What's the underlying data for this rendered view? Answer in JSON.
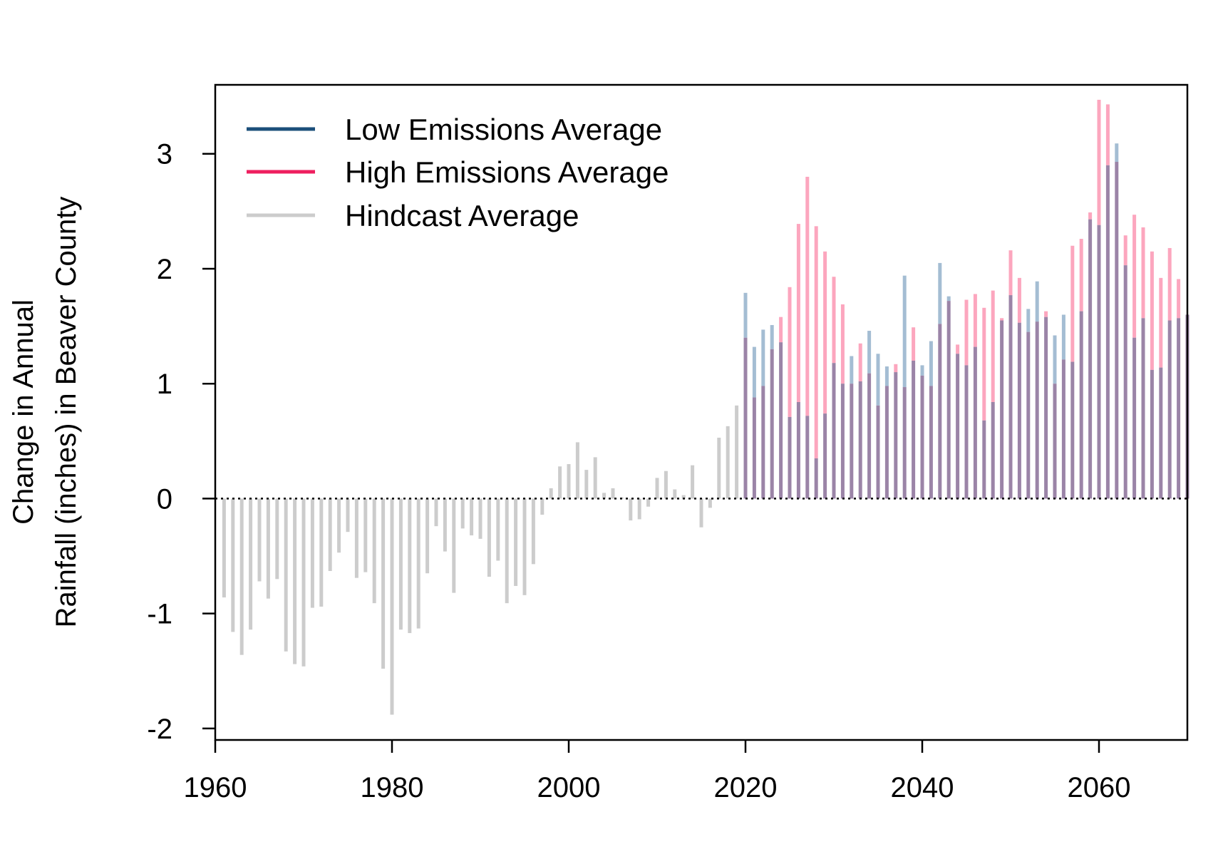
{
  "chart_data": {
    "type": "bar",
    "title": "",
    "xlabel": "",
    "ylabel_lines": [
      "Change in Annual",
      "Rainfall (inches) in Beaver County"
    ],
    "xlim": [
      1960,
      2070
    ],
    "ylim": [
      -2.1,
      3.6
    ],
    "xticks": [
      1960,
      1980,
      2000,
      2020,
      2040,
      2060
    ],
    "xtick_labels": [
      "1960",
      "1980",
      "2000",
      "2020",
      "2040",
      "2060"
    ],
    "yticks": [
      -2,
      -1,
      0,
      1,
      2,
      3
    ],
    "ytick_labels": [
      "-2",
      "-1",
      "0",
      "1",
      "2",
      "3"
    ],
    "grid": false,
    "zero_line": "dotted",
    "legend": {
      "position": "top-left",
      "entries": [
        {
          "label": "Low Emissions Average",
          "color": "#1b4f7a"
        },
        {
          "label": "High Emissions Average",
          "color": "#ee1f5f"
        },
        {
          "label": "Hindcast Average",
          "color": "#cccccc"
        }
      ]
    },
    "colors": {
      "hindcast": "#cccccc",
      "low_bar": "#a4bdd3",
      "high_bar": "#fca6be",
      "overlap": "#9b84a7"
    },
    "series": [
      {
        "name": "Hindcast Average",
        "x": [
          1961,
          1962,
          1963,
          1964,
          1965,
          1966,
          1967,
          1968,
          1969,
          1970,
          1971,
          1972,
          1973,
          1974,
          1975,
          1976,
          1977,
          1978,
          1979,
          1980,
          1981,
          1982,
          1983,
          1984,
          1985,
          1986,
          1987,
          1988,
          1989,
          1990,
          1991,
          1992,
          1993,
          1994,
          1995,
          1996,
          1997,
          1998,
          1999,
          2000,
          2001,
          2002,
          2003,
          2004,
          2005,
          2006,
          2007,
          2008,
          2009,
          2010,
          2011,
          2012,
          2013,
          2014,
          2015,
          2016,
          2017,
          2018,
          2019
        ],
        "values": [
          -0.86,
          -1.16,
          -1.36,
          -1.14,
          -0.72,
          -0.87,
          -0.7,
          -1.33,
          -1.44,
          -1.46,
          -0.95,
          -0.94,
          -0.63,
          -0.47,
          -0.29,
          -0.69,
          -0.64,
          -0.91,
          -1.48,
          -1.88,
          -1.14,
          -1.17,
          -1.13,
          -0.65,
          -0.24,
          -0.46,
          -0.82,
          -0.26,
          -0.32,
          -0.35,
          -0.68,
          -0.54,
          -0.91,
          -0.76,
          -0.84,
          -0.57,
          -0.14,
          0.09,
          0.28,
          0.3,
          0.49,
          0.25,
          0.36,
          0.05,
          0.09,
          0.01,
          -0.19,
          -0.18,
          -0.07,
          0.18,
          0.24,
          0.08,
          0.03,
          0.29,
          -0.25,
          -0.08,
          0.53,
          0.63,
          0.81
        ]
      },
      {
        "name": "Low Emissions Average",
        "x": [
          2020,
          2021,
          2022,
          2023,
          2024,
          2025,
          2026,
          2027,
          2028,
          2029,
          2030,
          2031,
          2032,
          2033,
          2034,
          2035,
          2036,
          2037,
          2038,
          2039,
          2040,
          2041,
          2042,
          2043,
          2044,
          2045,
          2046,
          2047,
          2048,
          2049,
          2050,
          2051,
          2052,
          2053,
          2054,
          2055,
          2056,
          2057,
          2058,
          2059,
          2060,
          2061,
          2062,
          2063,
          2064,
          2065,
          2066,
          2067,
          2068,
          2069,
          2070
        ],
        "values": [
          1.79,
          1.32,
          1.47,
          1.51,
          1.36,
          0.71,
          0.84,
          0.72,
          0.35,
          0.74,
          1.18,
          1.0,
          1.24,
          1.02,
          1.46,
          1.26,
          1.15,
          1.1,
          1.94,
          1.2,
          1.16,
          1.37,
          2.05,
          1.76,
          1.26,
          1.16,
          1.32,
          0.68,
          0.84,
          1.55,
          1.77,
          1.53,
          1.65,
          1.89,
          1.58,
          1.42,
          1.6,
          1.19,
          1.63,
          2.43,
          2.38,
          2.9,
          3.09,
          2.03,
          1.4,
          1.57,
          1.12,
          1.14,
          1.55,
          1.57,
          1.6
        ]
      },
      {
        "name": "High Emissions Average",
        "x": [
          2020,
          2021,
          2022,
          2023,
          2024,
          2025,
          2026,
          2027,
          2028,
          2029,
          2030,
          2031,
          2032,
          2033,
          2034,
          2035,
          2036,
          2037,
          2038,
          2039,
          2040,
          2041,
          2042,
          2043,
          2044,
          2045,
          2046,
          2047,
          2048,
          2049,
          2050,
          2051,
          2052,
          2053,
          2054,
          2055,
          2056,
          2057,
          2058,
          2059,
          2060,
          2061,
          2062,
          2063,
          2064,
          2065,
          2066,
          2067,
          2068,
          2069,
          2070
        ],
        "values": [
          1.4,
          0.88,
          0.98,
          1.3,
          1.58,
          1.84,
          2.39,
          2.8,
          2.37,
          2.15,
          1.93,
          1.69,
          1.0,
          1.35,
          1.09,
          0.81,
          0.98,
          1.17,
          0.97,
          1.49,
          1.07,
          0.98,
          1.52,
          1.72,
          1.34,
          1.73,
          1.78,
          1.66,
          1.81,
          1.57,
          2.16,
          1.92,
          1.45,
          1.54,
          1.63,
          1.0,
          1.21,
          2.2,
          2.26,
          2.49,
          3.47,
          3.43,
          2.93,
          2.29,
          2.47,
          2.36,
          2.15,
          1.92,
          2.18,
          1.91,
          1.6
        ]
      }
    ]
  }
}
